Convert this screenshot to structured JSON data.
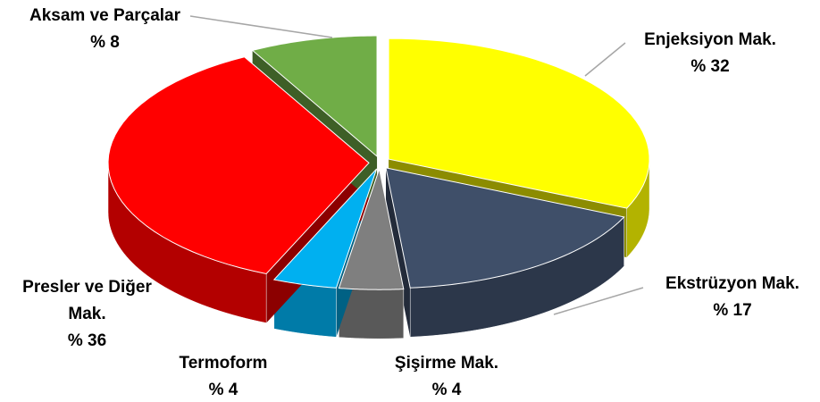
{
  "chart_data": {
    "type": "pie",
    "categories": [
      "Enjeksiyon Mak.",
      "Ekstrüzyon Mak.",
      "Şişirme Mak.",
      "Termoform",
      "Presler ve Diğer Mak.",
      "Aksam ve Parçalar"
    ],
    "values": [
      32,
      17,
      4,
      4,
      36,
      8
    ],
    "value_labels": [
      "% 32",
      "% 17",
      "% 4",
      "% 4",
      "% 36",
      "% 8"
    ],
    "colors": [
      "#ffff00",
      "#3f4f69",
      "#7f7f7f",
      "#00b0f0",
      "#ff0000",
      "#70ad47"
    ]
  }
}
